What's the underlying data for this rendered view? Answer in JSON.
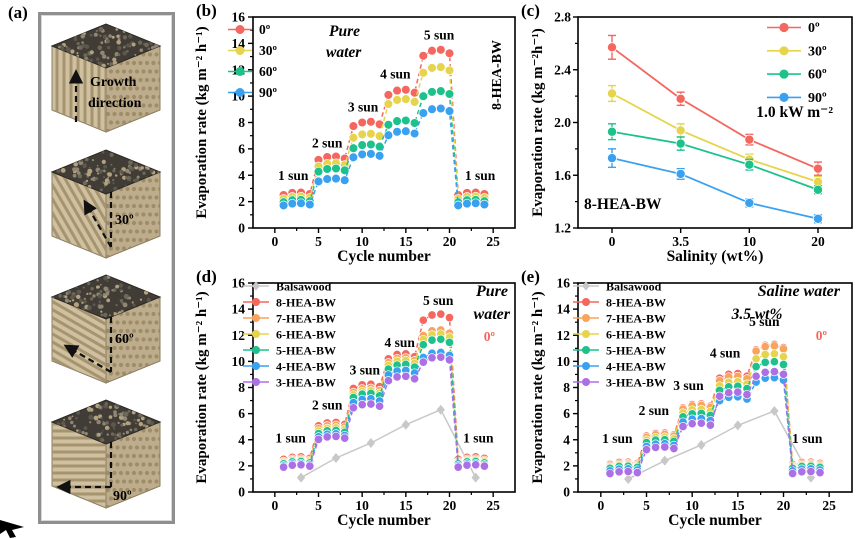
{
  "panel_labels": {
    "a": "(a)",
    "b": "(b)",
    "c": "(c)",
    "d": "(d)",
    "e": "(e)"
  },
  "panel_a": {
    "blocks": [
      {
        "angle_deg": 0,
        "label_lines": [
          "Growth",
          "direction"
        ]
      },
      {
        "angle_deg": 30,
        "label_lines": [
          "30º"
        ]
      },
      {
        "angle_deg": 60,
        "label_lines": [
          "60º"
        ]
      },
      {
        "angle_deg": 90,
        "label_lines": [
          "90º"
        ]
      }
    ]
  },
  "chart_data": [
    {
      "id": "b",
      "type": "scatter",
      "xlabel": "Cycle number",
      "ylabel": "Evaporation rate (kg m⁻² h⁻¹)",
      "xlim": [
        -2.5,
        27.5
      ],
      "ylim": [
        0,
        16
      ],
      "grid": false,
      "xticks": [
        0,
        5,
        10,
        15,
        20,
        25
      ],
      "yticks": [
        0,
        2,
        4,
        6,
        8,
        10,
        12,
        14,
        16
      ],
      "legend_position": "top-left",
      "cycles_per_level": 4,
      "sun_levels": [
        "1 sun",
        "2 sun",
        "3 sun",
        "4 sun",
        "5 sun",
        "1 sun"
      ],
      "series": [
        {
          "name": "0º",
          "color": "#f4665e",
          "levels": [
            2.6,
            5.3,
            7.9,
            10.3,
            13.3,
            2.6
          ]
        },
        {
          "name": "30º",
          "color": "#e6d44c",
          "levels": [
            2.3,
            4.8,
            7.0,
            9.6,
            12.0,
            2.3
          ]
        },
        {
          "name": "60º",
          "color": "#1dc18c",
          "levels": [
            2.05,
            4.4,
            6.2,
            8.0,
            10.2,
            2.05
          ]
        },
        {
          "name": "90º",
          "color": "#3aa0f0",
          "levels": [
            1.8,
            3.65,
            5.5,
            7.2,
            8.9,
            1.8
          ]
        }
      ],
      "annotations": [
        {
          "text": "1 sun",
          "x": 2.1,
          "y": 3.65
        },
        {
          "text": "2 sun",
          "x": 6.0,
          "y": 6.1
        },
        {
          "text": "3 sun",
          "x": 10.1,
          "y": 8.85
        },
        {
          "text": "4 sun",
          "x": 13.8,
          "y": 11.35
        },
        {
          "text": "5 sun",
          "x": 18.8,
          "y": 14.3
        },
        {
          "text": "1 sun",
          "x": 23.5,
          "y": 3.65
        }
      ],
      "water_label": [
        "Pure",
        "water"
      ],
      "side_label": "8-HEA-BW"
    },
    {
      "id": "c",
      "type": "line",
      "xlabel": "Salinity (wt%)",
      "ylabel": "Evaporation rate (kg m⁻²h⁻¹)",
      "categories": [
        "0",
        "3.5",
        "10",
        "20"
      ],
      "ylim": [
        1.2,
        2.8
      ],
      "yticks": [
        1.2,
        1.6,
        2.0,
        2.4,
        2.8
      ],
      "legend_position": "top-right",
      "grid": false,
      "series": [
        {
          "name": "0º",
          "color": "#f4665e",
          "values": [
            2.57,
            2.18,
            1.87,
            1.65
          ],
          "errors": [
            0.09,
            0.05,
            0.04,
            0.05
          ]
        },
        {
          "name": "30º",
          "color": "#e6d44c",
          "values": [
            2.22,
            1.94,
            1.72,
            1.55
          ],
          "errors": [
            0.06,
            0.05,
            0.04,
            0.04
          ]
        },
        {
          "name": "60º",
          "color": "#1dc18c",
          "values": [
            1.93,
            1.84,
            1.68,
            1.49
          ],
          "errors": [
            0.06,
            0.05,
            0.04,
            0.03
          ]
        },
        {
          "name": "90º",
          "color": "#3aa0f0",
          "values": [
            1.73,
            1.61,
            1.39,
            1.27
          ],
          "errors": [
            0.07,
            0.04,
            0.03,
            0.03
          ]
        }
      ],
      "power_label": "1.0 kW m⁻²",
      "sample_label": "8-HEA-BW"
    },
    {
      "id": "d",
      "type": "scatter",
      "xlabel": "Cycle number",
      "ylabel": "Evaporation rate (kg m⁻² h⁻¹)",
      "xlim": [
        -2.5,
        27.5
      ],
      "ylim": [
        0,
        16
      ],
      "grid": false,
      "xticks": [
        0,
        5,
        10,
        15,
        20,
        25
      ],
      "yticks": [
        0,
        2,
        4,
        6,
        8,
        10,
        12,
        14,
        16
      ],
      "legend_position": "top-left",
      "cycles_per_level": 4,
      "sun_levels": [
        "1 sun",
        "2 sun",
        "3 sun",
        "4 sun",
        "5 sun",
        "1 sun"
      ],
      "series": [
        {
          "name": "Balsawood",
          "color": "#c8c8c8",
          "marker": "diamond",
          "x": [
            3,
            7,
            11,
            15,
            19,
            23
          ],
          "values": [
            1.1,
            2.6,
            3.75,
            5.15,
            6.3,
            1.1
          ]
        },
        {
          "name": "8-HEA-BW",
          "color": "#f4665e",
          "levels": [
            2.6,
            5.2,
            8.1,
            10.4,
            13.4,
            2.6
          ]
        },
        {
          "name": "7-HEA-BW",
          "color": "#f8a45c",
          "levels": [
            2.45,
            5.0,
            7.8,
            10.1,
            12.2,
            2.45
          ]
        },
        {
          "name": "6-HEA-BW",
          "color": "#e6d44c",
          "levels": [
            2.35,
            4.8,
            7.6,
            9.9,
            11.9,
            2.35
          ]
        },
        {
          "name": "5-HEA-BW",
          "color": "#1dc18c",
          "levels": [
            2.25,
            4.6,
            7.4,
            9.6,
            11.5,
            2.25
          ]
        },
        {
          "name": "4-HEA-BW",
          "color": "#3aa0f0",
          "levels": [
            2.1,
            4.35,
            7.0,
            9.15,
            10.5,
            2.1
          ]
        },
        {
          "name": "3-HEA-BW",
          "color": "#ab70e5",
          "levels": [
            2.0,
            4.15,
            6.6,
            8.7,
            10.15,
            2.0
          ]
        }
      ],
      "annotations": [
        {
          "text": "1 sun",
          "x": 1.8,
          "y": 3.8
        },
        {
          "text": "2 sun",
          "x": 6.0,
          "y": 6.3
        },
        {
          "text": "3 sun",
          "x": 10.3,
          "y": 9.0
        },
        {
          "text": "4 sun",
          "x": 14.3,
          "y": 11.1
        },
        {
          "text": "5 sun",
          "x": 18.7,
          "y": 14.3
        },
        {
          "text": "1 sun",
          "x": 23.3,
          "y": 3.8
        }
      ],
      "water_label": [
        "Pure",
        "water"
      ],
      "angle_label": "0º"
    },
    {
      "id": "e",
      "type": "scatter",
      "xlabel": "Cycle number",
      "ylabel": "Evaporation rate (kg m⁻² h⁻¹)",
      "xlim": [
        -2.5,
        27.5
      ],
      "ylim": [
        0,
        16
      ],
      "grid": false,
      "xticks": [
        0,
        5,
        10,
        15,
        20,
        25
      ],
      "yticks": [
        0,
        2,
        4,
        6,
        8,
        10,
        12,
        14,
        16
      ],
      "legend_position": "top-left",
      "cycles_per_level": 4,
      "sun_levels": [
        "1 sun",
        "2 sun",
        "3 sun",
        "4 sun",
        "5 sun",
        "1 sun"
      ],
      "series": [
        {
          "name": "Balsawood",
          "color": "#c8c8c8",
          "marker": "diamond",
          "x": [
            3,
            7,
            11,
            15,
            19,
            23
          ],
          "values": [
            1.0,
            2.4,
            3.6,
            5.1,
            6.2,
            1.1
          ]
        },
        {
          "name": "8-HEA-BW",
          "color": "#f4665e",
          "levels": [
            2.2,
            4.4,
            6.6,
            8.9,
            11.1,
            2.2
          ]
        },
        {
          "name": "7-HEA-BW",
          "color": "#f8a45c",
          "levels": [
            2.1,
            4.3,
            6.5,
            8.7,
            11.0,
            2.1
          ]
        },
        {
          "name": "6-HEA-BW",
          "color": "#e6d44c",
          "levels": [
            2.0,
            4.1,
            6.2,
            8.3,
            10.4,
            2.0
          ]
        },
        {
          "name": "5-HEA-BW",
          "color": "#1dc18c",
          "levels": [
            1.9,
            3.9,
            5.9,
            7.95,
            9.8,
            1.9
          ]
        },
        {
          "name": "4-HEA-BW",
          "color": "#3aa0f0",
          "levels": [
            1.7,
            3.6,
            5.5,
            7.15,
            8.6,
            1.7
          ]
        },
        {
          "name": "3-HEA-BW",
          "color": "#ab70e5",
          "levels": [
            1.5,
            3.35,
            5.15,
            7.5,
            9.05,
            1.5
          ]
        }
      ],
      "annotations": [
        {
          "text": "1 sun",
          "x": 1.8,
          "y": 3.75
        },
        {
          "text": "2 sun",
          "x": 5.8,
          "y": 5.9
        },
        {
          "text": "3 sun",
          "x": 9.6,
          "y": 7.8
        },
        {
          "text": "4 sun",
          "x": 13.6,
          "y": 10.3
        },
        {
          "text": "5 sun",
          "x": 17.9,
          "y": 12.7
        },
        {
          "text": "1 sun",
          "x": 22.6,
          "y": 3.75
        }
      ],
      "water_label": [
        "Saline water",
        "3.5 wt%"
      ],
      "angle_label": "0º"
    }
  ]
}
